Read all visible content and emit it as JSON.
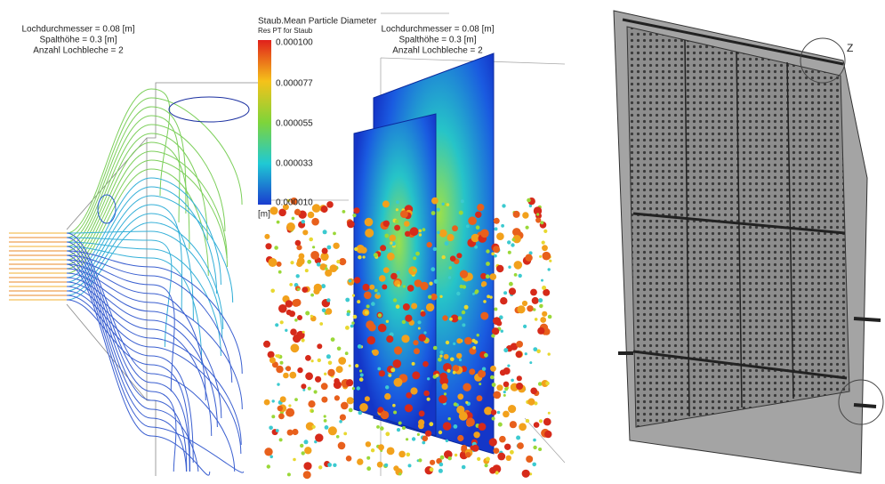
{
  "left_panel": {
    "annotation": [
      "Lochdurchmesser = 0.08 [m]",
      "Spalthöhe = 0.3 [m]",
      "Anzahl Lochbleche = 2"
    ]
  },
  "middle_panel": {
    "annotation": [
      "Lochdurchmesser = 0.08 [m]",
      "Spalthöhe = 0.3 [m]",
      "Anzahl Lochbleche = 2"
    ],
    "legend": {
      "title": "Staub.Mean Particle Diameter",
      "subtitle": "Res PT for Staub",
      "unit": "[m]",
      "ticks": [
        "0.000100",
        "0.000077",
        "0.000055",
        "0.000033",
        "0.000010"
      ]
    }
  },
  "right_panel": {
    "detail_label": "Z"
  }
}
